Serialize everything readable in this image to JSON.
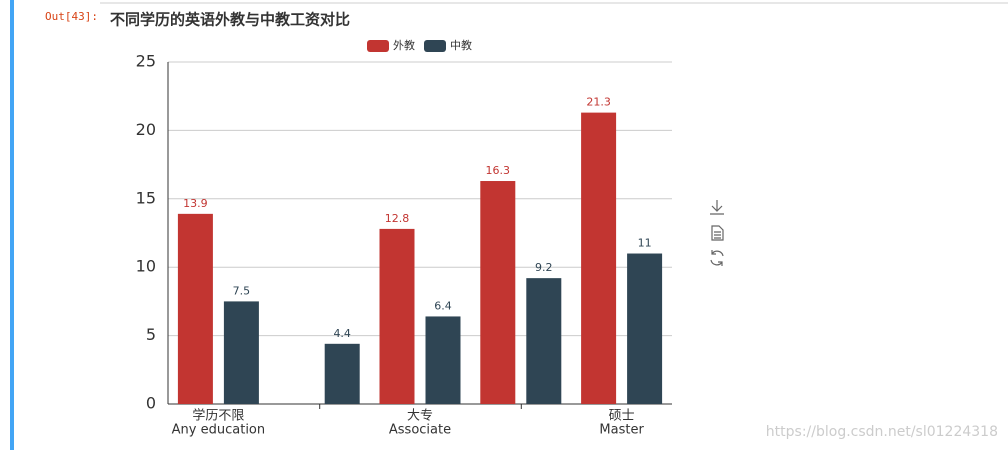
{
  "prompt": "Out[43]:",
  "watermark": "https://blog.csdn.net/sl01224318",
  "chart_data": {
    "type": "bar",
    "title": "不同学历的英语外教与中教工资对比",
    "categories": [
      [
        "学历不限",
        "Any education"
      ],
      null,
      [
        "大专",
        "Associate"
      ],
      null,
      [
        "硕士",
        "Master"
      ]
    ],
    "series": [
      {
        "name": "外教",
        "color": "#c23531",
        "values": [
          13.9,
          null,
          12.8,
          16.3,
          21.3
        ]
      },
      {
        "name": "中教",
        "color": "#2f4554",
        "values": [
          7.5,
          4.4,
          6.4,
          9.2,
          11
        ]
      }
    ],
    "ylim": [
      0,
      25
    ],
    "yticks": [
      0,
      5,
      10,
      15,
      20,
      25
    ],
    "grid": true,
    "legend": "top"
  }
}
